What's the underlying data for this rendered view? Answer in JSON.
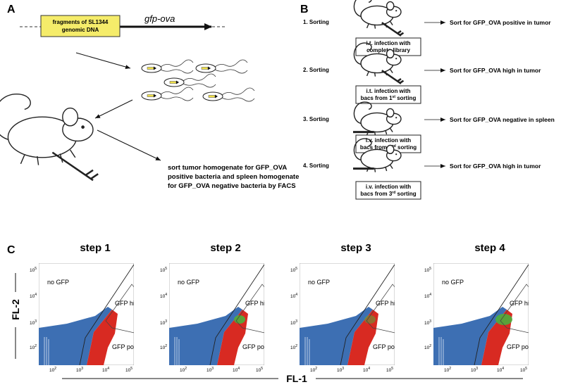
{
  "panel_a": {
    "label": "A",
    "plasmid": [
      "fragments of SL1344",
      "genomic DNA"
    ],
    "gene": "gfp-ova",
    "sort_text": [
      "sort tumor homogenate for GFP_OVA",
      "positive bacteria and spleen homogenate",
      "for GFP_OVA negative bacteria by FACS"
    ]
  },
  "panel_b": {
    "label": "B",
    "steps": [
      {
        "label": "1. Sorting",
        "box": [
          {
            "text": "i.t. infection with"
          },
          {
            "text": "complete library"
          }
        ],
        "result": "Sort for GFP_OVA positive in tumor"
      },
      {
        "label": "2. Sorting",
        "box": [
          {
            "text": "i.t. infection with"
          },
          {
            "text": "bacs from 1",
            "sup": "st",
            "after": " sorting"
          }
        ],
        "result": "Sort for GFP_OVA high in tumor"
      },
      {
        "label": "3. Sorting",
        "box": [
          {
            "text": "i.v. infection with"
          },
          {
            "text": "bacs from 2",
            "sup": "nd",
            "after": "  sorting"
          }
        ],
        "result": "Sort for GFP_OVA negative in spleen"
      },
      {
        "label": "4. Sorting",
        "box": [
          {
            "text": "i.v. infection with"
          },
          {
            "text": "bacs from 3",
            "sup": "rd",
            "after": "  sorting"
          }
        ],
        "result": "Sort for GFP_OVA high in tumor"
      }
    ]
  },
  "panel_c": {
    "label": "C",
    "y_axis": "FL-2",
    "x_axis": "FL-1",
    "ticks": [
      {
        "base": "10",
        "exp": "2"
      },
      {
        "base": "10",
        "exp": "3"
      },
      {
        "base": "10",
        "exp": "4"
      },
      {
        "base": "10",
        "exp": "5"
      }
    ],
    "gates": {
      "none": "no GFP",
      "high": "GFP high",
      "pos": "GFP pos"
    },
    "plots": [
      "step 1",
      "step 2",
      "step 3",
      "step 4"
    ]
  }
}
